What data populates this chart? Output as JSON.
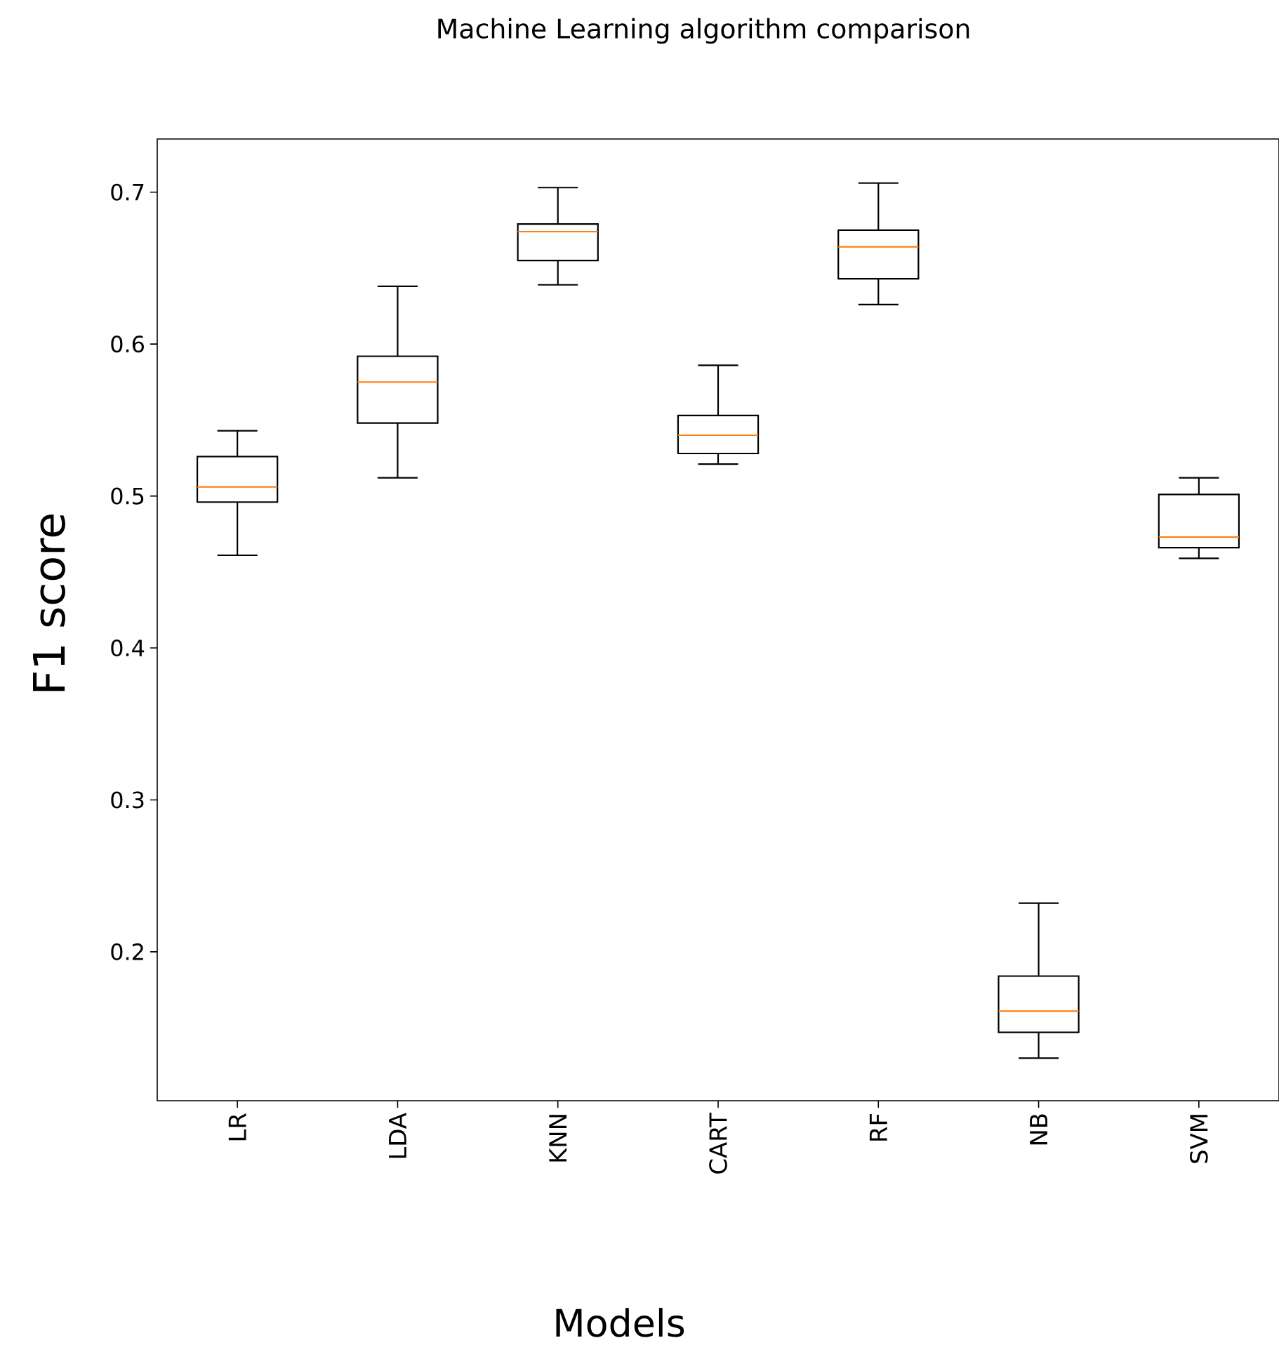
{
  "chart_data": {
    "type": "box",
    "title": "Machine Learning algorithm comparison",
    "xlabel": "Models",
    "ylabel": "F1 score",
    "categories": [
      "LR",
      "LDA",
      "KNN",
      "CART",
      "RF",
      "NB",
      "SVM"
    ],
    "color": "#000000",
    "boxes": [
      {
        "low": 0.461,
        "q1": 0.496,
        "median": 0.506,
        "q3": 0.526,
        "high": 0.543
      },
      {
        "low": 0.512,
        "q1": 0.548,
        "median": 0.575,
        "q3": 0.592,
        "high": 0.638
      },
      {
        "low": 0.639,
        "q1": 0.655,
        "median": 0.674,
        "q3": 0.679,
        "high": 0.703
      },
      {
        "low": 0.521,
        "q1": 0.528,
        "median": 0.54,
        "q3": 0.553,
        "high": 0.586
      },
      {
        "low": 0.626,
        "q1": 0.643,
        "median": 0.664,
        "q3": 0.675,
        "high": 0.706
      },
      {
        "low": 0.13,
        "q1": 0.147,
        "median": 0.161,
        "q3": 0.184,
        "high": 0.232
      },
      {
        "low": 0.459,
        "q1": 0.466,
        "median": 0.473,
        "q3": 0.501,
        "high": 0.512
      }
    ],
    "ylim": [
      0.102,
      0.735
    ],
    "yticks": [
      0.2,
      0.3,
      0.4,
      0.5,
      0.6,
      0.7
    ],
    "grid": false
  }
}
